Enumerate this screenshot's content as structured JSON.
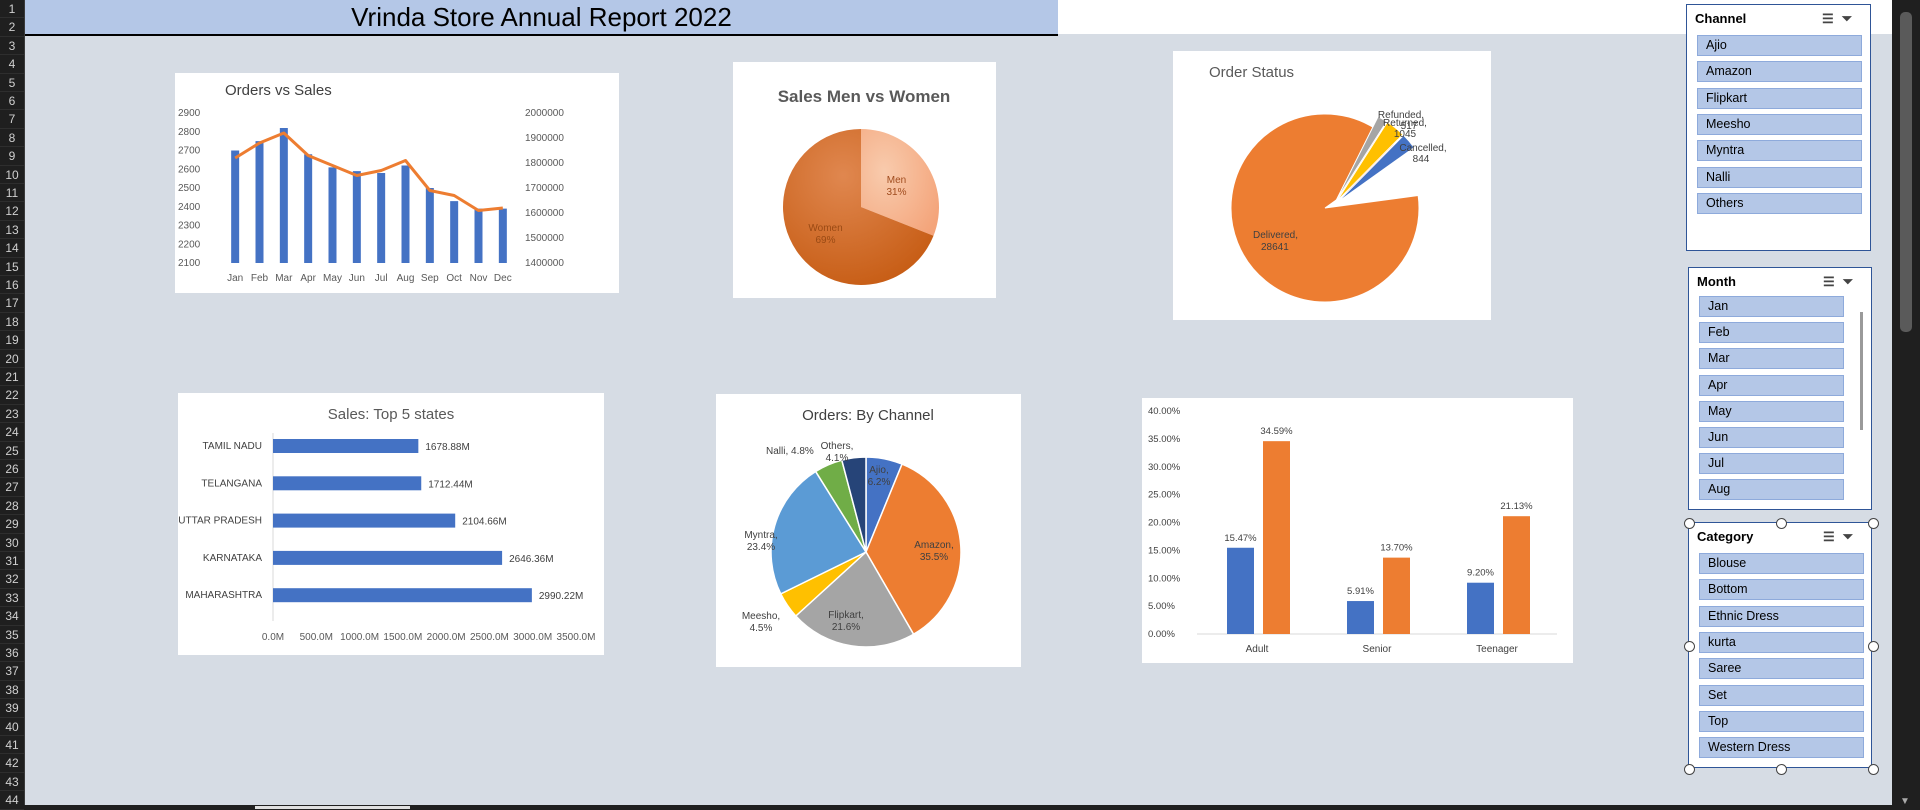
{
  "row_numbers": [
    "1",
    "2",
    "3",
    "4",
    "5",
    "6",
    "7",
    "8",
    "9",
    "10",
    "11",
    "12",
    "13",
    "14",
    "15",
    "16",
    "17",
    "18",
    "19",
    "20",
    "21",
    "22",
    "23",
    "24",
    "25",
    "26",
    "27",
    "28",
    "29",
    "30",
    "31",
    "32",
    "33",
    "34",
    "35",
    "36",
    "37",
    "38",
    "39",
    "40",
    "41",
    "42",
    "43",
    "44"
  ],
  "title": "Vrinda Store Annual Report 2022",
  "colors": {
    "blue": "#4472c4",
    "orange": "#ed7d31",
    "gray": "#a5a5a5",
    "yellow": "#ffc000",
    "lightblue": "#5b9bd5",
    "green": "#70ad47",
    "navy": "#264478",
    "slicer_item": "#b4c7e7"
  },
  "chart_data": [
    {
      "type": "bar",
      "title": "Orders vs Sales",
      "categories": [
        "Jan",
        "Feb",
        "Mar",
        "Apr",
        "May",
        "Jun",
        "Jul",
        "Aug",
        "Sep",
        "Oct",
        "Nov",
        "Dec"
      ],
      "series": [
        {
          "values": [
            2700,
            2750,
            2820,
            2680,
            2610,
            2590,
            2580,
            2620,
            2500,
            2430,
            2390,
            2390
          ]
        },
        {
          "values": [
            1820000,
            1880000,
            1920000,
            1830000,
            1790000,
            1750000,
            1770000,
            1810000,
            1690000,
            1670000,
            1610000,
            1620000
          ]
        }
      ],
      "y_ticks": [
        "2900",
        "2800",
        "2700",
        "2600",
        "2500",
        "2400",
        "2300",
        "2200",
        "2100"
      ],
      "y2_ticks": [
        "2000000",
        "1900000",
        "1800000",
        "1700000",
        "1600000",
        "1500000",
        "1400000"
      ],
      "ylim": [
        2100,
        2900
      ],
      "y2lim": [
        1400000,
        2000000
      ]
    },
    {
      "type": "pie",
      "title": "Sales Men vs Women",
      "slices": [
        {
          "label": "Men",
          "value": 31,
          "text": "31%"
        },
        {
          "label": "Women",
          "value": 69,
          "text": "69%"
        }
      ]
    },
    {
      "type": "pie",
      "title": "Order Status",
      "slices": [
        {
          "label": "Delivered,",
          "value": 28641
        },
        {
          "label": "Cancelled,",
          "value": 844
        },
        {
          "label": "Returned,",
          "value": 1045
        },
        {
          "label": "Refunded,",
          "value": 517
        }
      ]
    },
    {
      "type": "bar",
      "title": "Sales: Top 5 states",
      "categories": [
        "TAMIL NADU",
        "TELANGANA",
        "UTTAR PRADESH",
        "KARNATAKA",
        "MAHARASHTRA"
      ],
      "values": [
        1678.88,
        1712.44,
        2104.66,
        2646.36,
        2990.22
      ],
      "labels": [
        "1678.88M",
        "1712.44M",
        "2104.66M",
        "2646.36M",
        "2990.22M"
      ],
      "x_ticks": [
        "0.0M",
        "500.0M",
        "1000.0M",
        "1500.0M",
        "2000.0M",
        "2500.0M",
        "3000.0M",
        "3500.0M"
      ],
      "xlim": [
        0,
        3500
      ]
    },
    {
      "type": "pie",
      "title": "Orders: By Channel",
      "slices": [
        {
          "label": "Ajio,",
          "text": "6.2%",
          "value": 6.2
        },
        {
          "label": "Amazon,",
          "text": "35.5%",
          "value": 35.5
        },
        {
          "label": "Flipkart,",
          "text": "21.6%",
          "value": 21.6
        },
        {
          "label": "Meesho,",
          "text": "4.5%",
          "value": 4.5
        },
        {
          "label": "Myntra,",
          "text": "23.4%",
          "value": 23.4
        },
        {
          "label": "Nalli, 4.8%",
          "text": "",
          "value": 4.8
        },
        {
          "label": "Others,",
          "text": "4.1%",
          "value": 4.1
        }
      ]
    },
    {
      "type": "bar",
      "categories": [
        "Adult",
        "Senior",
        "Teenager"
      ],
      "series": [
        {
          "values": [
            15.47,
            5.91,
            9.2
          ],
          "labels": [
            "15.47%",
            "5.91%",
            "9.20%"
          ]
        },
        {
          "values": [
            34.59,
            13.7,
            21.13
          ],
          "labels": [
            "34.59%",
            "13.70%",
            "21.13%"
          ]
        }
      ],
      "y_ticks": [
        "40.00%",
        "35.00%",
        "30.00%",
        "25.00%",
        "20.00%",
        "15.00%",
        "10.00%",
        "5.00%",
        "0.00%"
      ],
      "ylim": [
        0,
        40
      ]
    }
  ],
  "slicers": {
    "channel": {
      "title": "Channel",
      "items": [
        "Ajio",
        "Amazon",
        "Flipkart",
        "Meesho",
        "Myntra",
        "Nalli",
        "Others"
      ]
    },
    "month": {
      "title": "Month",
      "items": [
        "Jan",
        "Feb",
        "Mar",
        "Apr",
        "May",
        "Jun",
        "Jul",
        "Aug"
      ]
    },
    "category": {
      "title": "Category",
      "items": [
        "Blouse",
        "Bottom",
        "Ethnic Dress",
        "kurta",
        "Saree",
        "Set",
        "Top",
        "Western Dress"
      ]
    }
  },
  "slicer_icons": {
    "multi_select": "multi-select-icon",
    "clear_filter": "clear-filter-icon"
  }
}
